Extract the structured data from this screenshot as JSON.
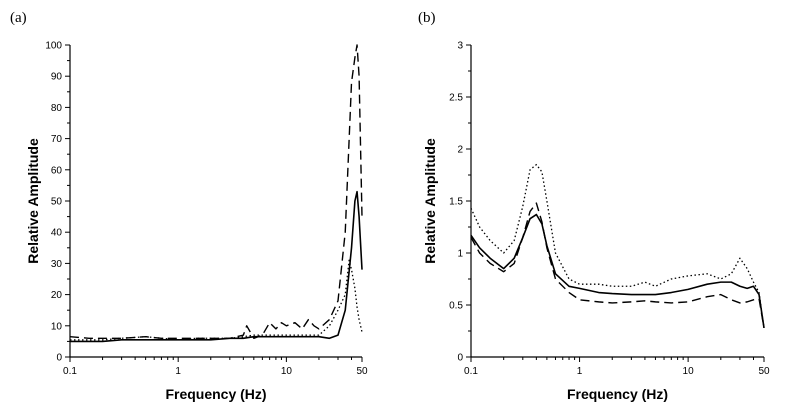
{
  "chart_data": [
    {
      "panel_label": "(a)",
      "type": "line",
      "xscale": "log",
      "xlabel": "Frequency (Hz)",
      "ylabel": "Relative Amplitude",
      "xlim": [
        0.1,
        50
      ],
      "ylim": [
        0,
        100
      ],
      "x_ticks": [
        0.1,
        1,
        10,
        50
      ],
      "x_tick_labels": [
        "0.1",
        "1",
        "10",
        "50"
      ],
      "y_ticks": [
        0,
        10,
        20,
        30,
        40,
        50,
        60,
        70,
        80,
        90,
        100
      ],
      "y_tick_labels": [
        "0",
        "10",
        "20",
        "30",
        "40",
        "50",
        "60",
        "70",
        "80",
        "90",
        "100"
      ],
      "series": [
        {
          "style": "solid",
          "x": [
            0.1,
            0.15,
            0.2,
            0.3,
            0.5,
            0.7,
            1,
            1.5,
            2,
            3,
            4,
            5,
            7,
            10,
            15,
            20,
            25,
            30,
            35,
            40,
            43,
            45,
            47,
            50
          ],
          "y": [
            5,
            5,
            5,
            5.5,
            5.5,
            5.5,
            5.5,
            5.5,
            5.5,
            6,
            6,
            6.5,
            6.5,
            6.5,
            6.5,
            6.5,
            6,
            7,
            15,
            35,
            50,
            53,
            45,
            28
          ]
        },
        {
          "style": "dashed",
          "x": [
            0.1,
            0.15,
            0.2,
            0.3,
            0.5,
            0.7,
            1,
            1.5,
            2,
            3,
            4,
            4.3,
            5,
            6,
            7,
            8,
            9,
            10,
            12,
            14,
            16,
            18,
            20,
            25,
            30,
            35,
            40,
            43,
            45,
            47,
            50
          ],
          "y": [
            6.5,
            6,
            6,
            6,
            6.5,
            6,
            6,
            6,
            6,
            6,
            7,
            10,
            6,
            7,
            11,
            9,
            11,
            10,
            11,
            9,
            12,
            10,
            9,
            12,
            18,
            40,
            88,
            96,
            100,
            90,
            45
          ]
        },
        {
          "style": "dotted",
          "x": [
            0.1,
            0.15,
            0.2,
            0.3,
            0.5,
            0.7,
            1,
            1.5,
            2,
            3,
            4,
            5,
            7,
            10,
            15,
            20,
            25,
            30,
            35,
            38,
            40,
            43,
            45,
            47,
            50
          ],
          "y": [
            5.5,
            5.5,
            5.5,
            6,
            6.5,
            6,
            5.5,
            6,
            6,
            6,
            6.5,
            7,
            7,
            7,
            7,
            7,
            10,
            15,
            20,
            31,
            28,
            22,
            16,
            12,
            8
          ]
        }
      ]
    },
    {
      "panel_label": "(b)",
      "type": "line",
      "xscale": "log",
      "xlabel": "Frequency (Hz)",
      "ylabel": "Relative Amplitude",
      "xlim": [
        0.1,
        50
      ],
      "ylim": [
        0,
        3
      ],
      "x_ticks": [
        0.1,
        1,
        10,
        50
      ],
      "x_tick_labels": [
        "0.1",
        "1",
        "10",
        "50"
      ],
      "y_ticks": [
        0,
        0.5,
        1,
        1.5,
        2,
        2.5,
        3
      ],
      "y_tick_labels": [
        "0",
        "0.5",
        "1",
        "1.5",
        "2",
        "2.5",
        "3"
      ],
      "series": [
        {
          "style": "solid",
          "x": [
            0.1,
            0.12,
            0.15,
            0.2,
            0.25,
            0.3,
            0.35,
            0.4,
            0.45,
            0.5,
            0.6,
            0.8,
            1,
            1.5,
            2,
            3,
            4,
            5,
            7,
            10,
            15,
            20,
            25,
            30,
            35,
            40,
            45,
            50
          ],
          "y": [
            1.17,
            1.05,
            0.95,
            0.85,
            0.95,
            1.15,
            1.33,
            1.37,
            1.28,
            1.07,
            0.8,
            0.68,
            0.66,
            0.62,
            0.61,
            0.6,
            0.6,
            0.6,
            0.62,
            0.65,
            0.7,
            0.72,
            0.72,
            0.68,
            0.66,
            0.68,
            0.6,
            0.28
          ]
        },
        {
          "style": "dashed",
          "x": [
            0.1,
            0.12,
            0.15,
            0.2,
            0.25,
            0.3,
            0.35,
            0.4,
            0.45,
            0.5,
            0.6,
            0.8,
            1,
            1.5,
            2,
            3,
            4,
            5,
            7,
            10,
            15,
            20,
            25,
            30,
            35,
            40,
            45,
            50
          ],
          "y": [
            1.15,
            1.0,
            0.9,
            0.82,
            0.9,
            1.15,
            1.4,
            1.48,
            1.3,
            1.05,
            0.75,
            0.62,
            0.55,
            0.53,
            0.52,
            0.53,
            0.54,
            0.53,
            0.52,
            0.53,
            0.58,
            0.6,
            0.55,
            0.52,
            0.53,
            0.55,
            0.56,
            0.28
          ]
        },
        {
          "style": "dotted",
          "x": [
            0.1,
            0.12,
            0.15,
            0.2,
            0.25,
            0.3,
            0.35,
            0.4,
            0.45,
            0.5,
            0.6,
            0.8,
            1,
            1.5,
            2,
            3,
            4,
            5,
            7,
            10,
            15,
            20,
            25,
            30,
            35,
            40,
            45,
            50
          ],
          "y": [
            1.43,
            1.25,
            1.12,
            1.0,
            1.12,
            1.45,
            1.8,
            1.85,
            1.78,
            1.5,
            1.0,
            0.75,
            0.7,
            0.7,
            0.68,
            0.68,
            0.72,
            0.68,
            0.75,
            0.78,
            0.8,
            0.75,
            0.8,
            0.95,
            0.85,
            0.72,
            0.62,
            0.28
          ]
        }
      ]
    }
  ]
}
